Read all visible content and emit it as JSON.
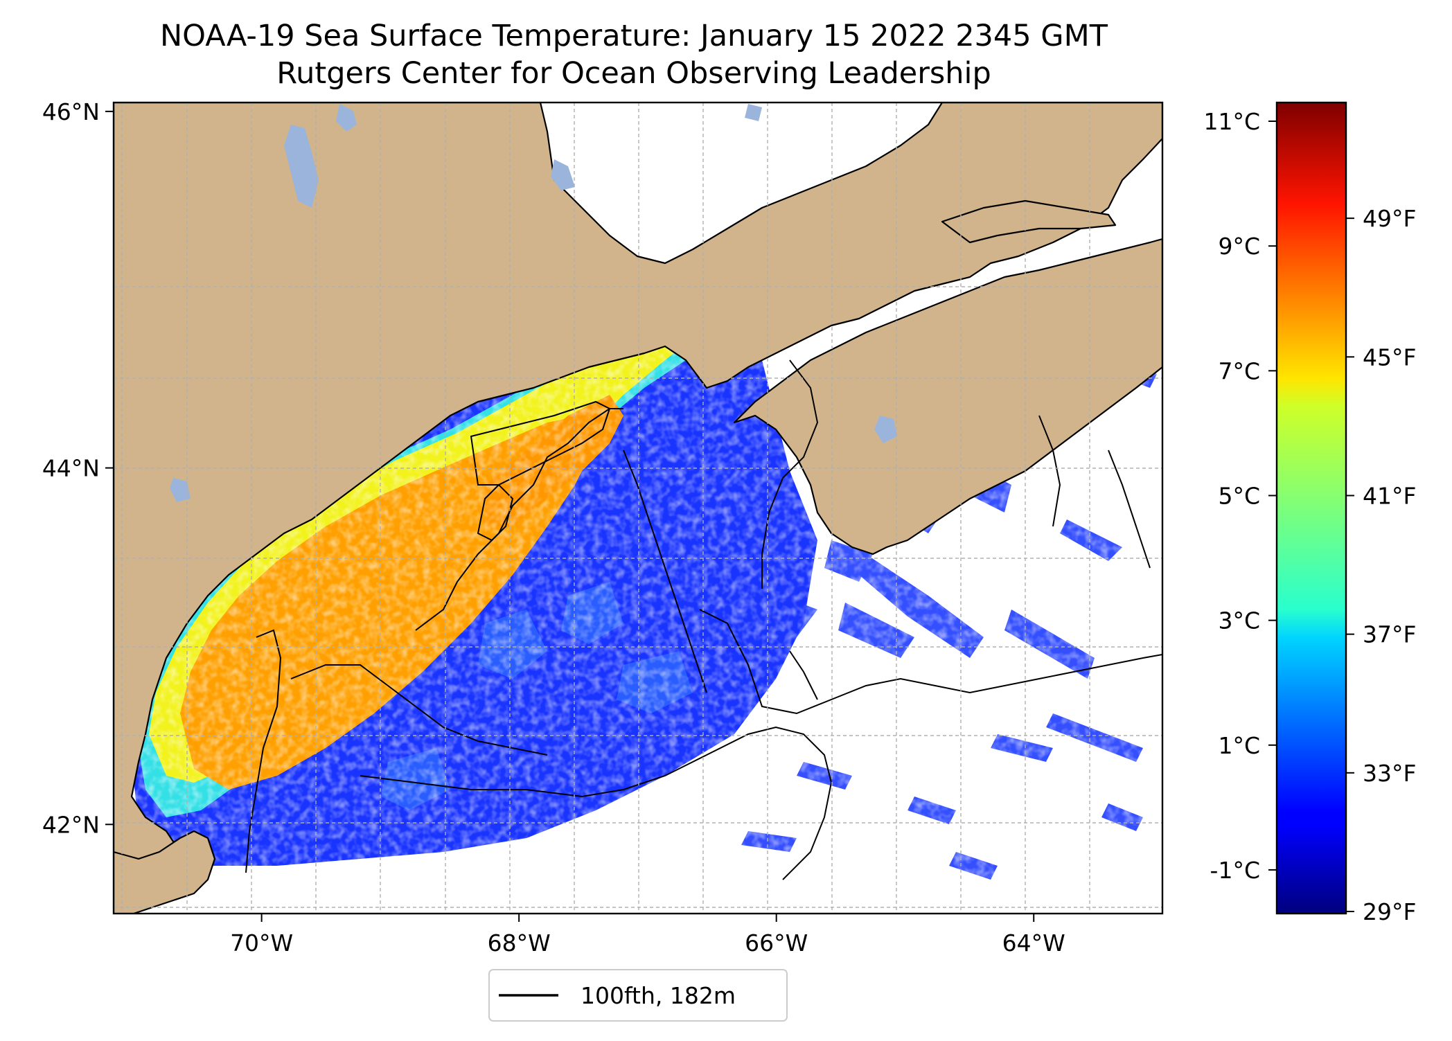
{
  "title": {
    "line1": "NOAA-19 Sea Surface Temperature: January 15 2022 2345 GMT",
    "line2": "Rutgers Center for Ocean Observing Leadership"
  },
  "map": {
    "region": "Gulf of Maine",
    "lon_range": [
      -71.15,
      -63.0
    ],
    "lat_range": [
      41.5,
      46.05
    ],
    "lon_ticks": [
      {
        "value": -70,
        "label": "70°W"
      },
      {
        "value": -68,
        "label": "68°W"
      },
      {
        "value": -66,
        "label": "66°W"
      },
      {
        "value": -64,
        "label": "64°W"
      }
    ],
    "lat_ticks": [
      {
        "value": 46,
        "label": "46°N"
      },
      {
        "value": 44,
        "label": "44°N"
      },
      {
        "value": 42,
        "label": "42°N"
      }
    ],
    "gridlines": true,
    "colors": {
      "land": "#d2b48c",
      "lakes": "#9ab4dc",
      "coastline": "#000000",
      "no_data": "#ffffff",
      "grid": "#b0b0b0"
    }
  },
  "legend": {
    "label": "100fth, 182m",
    "line_color": "#000000",
    "placement": "below-map"
  },
  "colorbar": {
    "colormap": "jet",
    "range_c": [
      -1.7,
      11.3
    ],
    "celsius_ticks": [
      {
        "value": 11,
        "label": "11°C"
      },
      {
        "value": 9,
        "label": "9°C"
      },
      {
        "value": 7,
        "label": "7°C"
      },
      {
        "value": 5,
        "label": "5°C"
      },
      {
        "value": 3,
        "label": "3°C"
      },
      {
        "value": 1,
        "label": "1°C"
      },
      {
        "value": -1,
        "label": "-1°C"
      }
    ],
    "fahrenheit_ticks": [
      {
        "value": 49,
        "label": "49°F"
      },
      {
        "value": 45,
        "label": "45°F"
      },
      {
        "value": 41,
        "label": "41°F"
      },
      {
        "value": 37,
        "label": "37°F"
      },
      {
        "value": 33,
        "label": "33°F"
      },
      {
        "value": 29,
        "label": "29°F"
      }
    ]
  }
}
